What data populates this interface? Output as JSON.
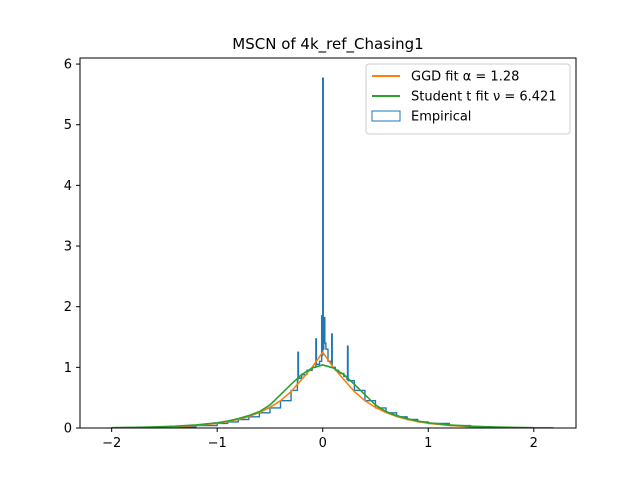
{
  "chart_data": {
    "type": "line",
    "title": "MSCN of 4k_ref_Chasing1",
    "xlabel": "",
    "ylabel": "",
    "xlim": [
      -2.3,
      2.4
    ],
    "ylim": [
      0,
      6.1
    ],
    "x_ticks": [
      -2,
      -1,
      0,
      1,
      2
    ],
    "y_ticks": [
      0,
      1,
      2,
      3,
      4,
      5,
      6
    ],
    "x_tick_labels": [
      "−2",
      "−1",
      "0",
      "1",
      "2"
    ],
    "y_tick_labels": [
      "0",
      "1",
      "2",
      "3",
      "4",
      "5",
      "6"
    ],
    "grid": false,
    "legend_position": "top-right",
    "series": [
      {
        "name": "GGD fit α = 1.28",
        "color": "#ff7f0e",
        "kind": "line",
        "x": [
          -2.0,
          -1.8,
          -1.6,
          -1.4,
          -1.2,
          -1.0,
          -0.9,
          -0.8,
          -0.7,
          -0.6,
          -0.5,
          -0.4,
          -0.3,
          -0.2,
          -0.1,
          0.0,
          0.1,
          0.2,
          0.3,
          0.4,
          0.5,
          0.6,
          0.7,
          0.8,
          0.9,
          1.0,
          1.2,
          1.4,
          1.6,
          1.8,
          2.0
        ],
        "y": [
          0.003,
          0.006,
          0.012,
          0.022,
          0.042,
          0.078,
          0.105,
          0.142,
          0.19,
          0.255,
          0.34,
          0.45,
          0.6,
          0.8,
          1.0,
          1.25,
          1.0,
          0.8,
          0.6,
          0.45,
          0.34,
          0.255,
          0.19,
          0.142,
          0.105,
          0.078,
          0.042,
          0.022,
          0.012,
          0.006,
          0.003
        ]
      },
      {
        "name": "Student t fit ν = 6.421",
        "color": "#2ca02c",
        "kind": "line",
        "x": [
          -2.0,
          -1.8,
          -1.6,
          -1.4,
          -1.2,
          -1.0,
          -0.9,
          -0.8,
          -0.7,
          -0.6,
          -0.5,
          -0.4,
          -0.3,
          -0.2,
          -0.1,
          0.0,
          0.1,
          0.2,
          0.3,
          0.4,
          0.5,
          0.6,
          0.7,
          0.8,
          0.9,
          1.0,
          1.2,
          1.4,
          1.6,
          1.8,
          2.0
        ],
        "y": [
          0.006,
          0.01,
          0.018,
          0.03,
          0.05,
          0.085,
          0.115,
          0.155,
          0.205,
          0.27,
          0.38,
          0.55,
          0.72,
          0.88,
          0.99,
          1.04,
          0.99,
          0.88,
          0.72,
          0.55,
          0.38,
          0.27,
          0.205,
          0.155,
          0.115,
          0.085,
          0.05,
          0.03,
          0.018,
          0.01,
          0.006
        ]
      },
      {
        "name": "Empirical",
        "color": "#1f77b4",
        "kind": "step",
        "x": [
          -2.0,
          -1.8,
          -1.6,
          -1.4,
          -1.2,
          -1.0,
          -0.9,
          -0.8,
          -0.7,
          -0.6,
          -0.5,
          -0.4,
          -0.3,
          -0.24,
          -0.235,
          -0.23,
          -0.2,
          -0.15,
          -0.1,
          -0.07,
          -0.065,
          -0.06,
          -0.03,
          -0.01,
          -0.005,
          0.0,
          0.005,
          0.01,
          0.02,
          0.03,
          0.05,
          0.08,
          0.085,
          0.09,
          0.12,
          0.15,
          0.2,
          0.23,
          0.235,
          0.24,
          0.3,
          0.4,
          0.5,
          0.6,
          0.7,
          0.8,
          0.9,
          1.0,
          1.2,
          1.4,
          1.6,
          1.8,
          2.0,
          2.18
        ],
        "y": [
          0.003,
          0.005,
          0.01,
          0.02,
          0.04,
          0.075,
          0.1,
          0.14,
          0.185,
          0.25,
          0.33,
          0.45,
          0.62,
          0.78,
          1.25,
          0.82,
          0.88,
          0.95,
          1.0,
          1.0,
          1.47,
          1.05,
          1.1,
          1.85,
          1.2,
          5.77,
          1.3,
          1.82,
          1.4,
          1.3,
          1.1,
          1.05,
          1.55,
          1.0,
          0.95,
          0.9,
          0.85,
          0.8,
          1.35,
          0.78,
          0.62,
          0.45,
          0.33,
          0.25,
          0.185,
          0.14,
          0.1,
          0.075,
          0.04,
          0.02,
          0.01,
          0.005,
          0.003,
          0.0
        ]
      }
    ]
  }
}
